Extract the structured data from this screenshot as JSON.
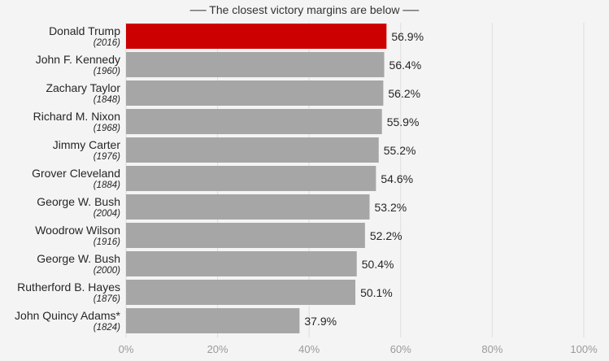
{
  "note": "── The closest victory margins are below ──",
  "colors": {
    "highlight": "#cc0000",
    "bar": "#a6a6a6",
    "grid": "#dddddd"
  },
  "chart_data": {
    "type": "bar",
    "orientation": "horizontal",
    "title": "",
    "xlabel": "",
    "ylabel": "",
    "xlim": [
      0,
      100
    ],
    "xticks": [
      0,
      20,
      40,
      60,
      80,
      100
    ],
    "xtick_labels": [
      "0%",
      "20%",
      "40%",
      "60%",
      "80%",
      "100%"
    ],
    "grid": "vertical",
    "categories": [
      "Donald Trump",
      "John F. Kennedy",
      "Zachary Taylor",
      "Richard M. Nixon",
      "Jimmy Carter",
      "Grover Cleveland",
      "George W. Bush",
      "Woodrow Wilson",
      "George W. Bush",
      "Rutherford B. Hayes",
      "John Quincy Adams*"
    ],
    "years": [
      "(2016)",
      "(1960)",
      "(1848)",
      "(1968)",
      "(1976)",
      "(1884)",
      "(2004)",
      "(1916)",
      "(2000)",
      "(1876)",
      "(1824)"
    ],
    "values": [
      56.9,
      56.4,
      56.2,
      55.9,
      55.2,
      54.6,
      53.2,
      52.2,
      50.4,
      50.1,
      37.9
    ],
    "value_labels": [
      "56.9%",
      "56.4%",
      "56.2%",
      "55.9%",
      "55.2%",
      "54.6%",
      "53.2%",
      "52.2%",
      "50.4%",
      "50.1%",
      "37.9%"
    ],
    "highlight_index": 0
  }
}
